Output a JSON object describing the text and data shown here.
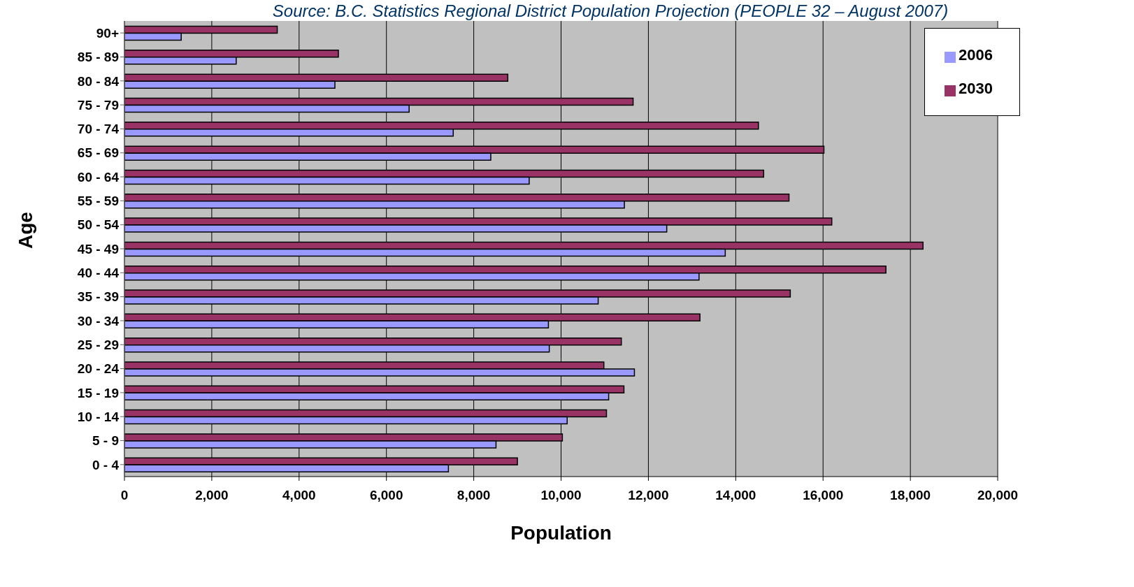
{
  "chart_data": {
    "type": "bar",
    "orientation": "horizontal",
    "annotations": [
      "Source: B.C. Statistics Regional District Population Projection (PEOPLE 32 – August 2007)"
    ],
    "xlabel": "Population",
    "ylabel": "Age",
    "categories": [
      "90+",
      "85 - 89",
      "80 - 84",
      "75 - 79",
      "70 - 74",
      "65 - 69",
      "60 - 64",
      "55 - 59",
      "50 - 54",
      "45 - 49",
      "40 - 44",
      "35 - 39",
      "30 - 34",
      "25 - 29",
      "20 - 24",
      "15 - 19",
      "10 - 14",
      "5 - 9",
      "0 - 4"
    ],
    "series": [
      {
        "name": "2030",
        "color": "#993366",
        "values": [
          3500,
          4900,
          8780,
          11650,
          14520,
          16020,
          14640,
          15220,
          16200,
          18290,
          17440,
          15250,
          13180,
          11380,
          10980,
          11440,
          11040,
          10030,
          9000
        ]
      },
      {
        "name": "2006",
        "color": "#9999ff",
        "values": [
          1300,
          2560,
          4820,
          6520,
          7530,
          8390,
          9270,
          11450,
          12420,
          13760,
          13160,
          10850,
          9710,
          9730,
          11680,
          11090,
          10140,
          8510,
          7420
        ]
      }
    ],
    "xlim": [
      0,
      20000
    ],
    "xticks": [
      {
        "value": 0,
        "label": "0"
      },
      {
        "value": 2000,
        "label": "2,000"
      },
      {
        "value": 4000,
        "label": "4,000"
      },
      {
        "value": 6000,
        "label": "6,000"
      },
      {
        "value": 8000,
        "label": "8,000"
      },
      {
        "value": 10000,
        "label": "10,000"
      },
      {
        "value": 12000,
        "label": "12,000"
      },
      {
        "value": 14000,
        "label": "14,000"
      },
      {
        "value": 16000,
        "label": "16,000"
      },
      {
        "value": 18000,
        "label": "18,000"
      },
      {
        "value": 20000,
        "label": "20,000"
      }
    ],
    "grid": "x",
    "legend": "top right"
  }
}
